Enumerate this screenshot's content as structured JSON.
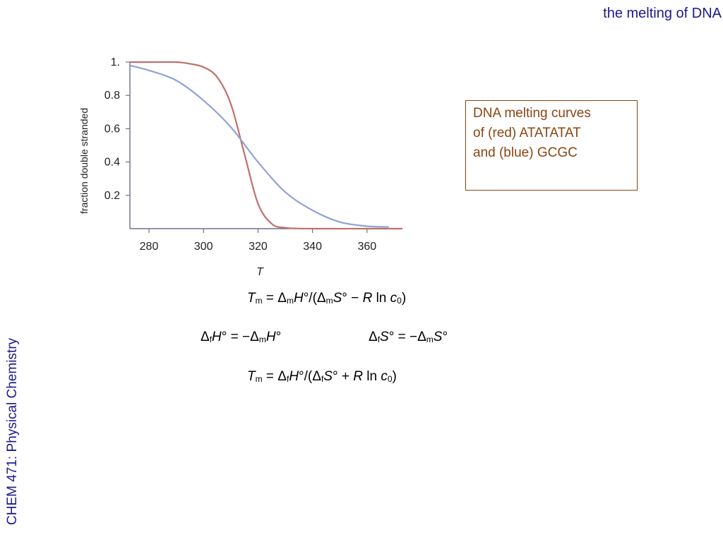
{
  "header": {
    "title": "the melting of DNA"
  },
  "sidebar": {
    "course_label": "CHEM 471: Physical Chemistry"
  },
  "note": {
    "lines": [
      "DNA melting curves",
      "of (red) ATATATAT",
      "and (blue) GCGC"
    ]
  },
  "colors": {
    "red_curve": "#c0706a",
    "blue_curve": "#8fa4d4",
    "axis": "#555577",
    "title": "#1a1a8c",
    "note": "#8b4513"
  },
  "chart_data": {
    "type": "line",
    "xlabel": "T",
    "ylabel": "fraction double stranded",
    "xlim": [
      273,
      373
    ],
    "ylim": [
      0,
      1
    ],
    "x_ticks": [
      280,
      300,
      320,
      340,
      360
    ],
    "x_tick_labels": [
      "280",
      "300",
      "320",
      "340",
      "360"
    ],
    "y_ticks": [
      0.2,
      0.4,
      0.6,
      0.8,
      1
    ],
    "y_tick_labels": [
      "0.2",
      "0.4",
      "0.6",
      "0.8",
      "1."
    ],
    "grid": false,
    "series": [
      {
        "color": "red",
        "x": [
          273,
          280,
          290,
          295,
          300,
          305,
          310,
          315,
          320,
          325,
          330,
          340,
          360,
          373
        ],
        "y": [
          1.0,
          1.0,
          1.0,
          0.99,
          0.97,
          0.91,
          0.75,
          0.45,
          0.15,
          0.03,
          0.005,
          0.0,
          0.0,
          0.0
        ]
      },
      {
        "color": "blue",
        "x": [
          273,
          280,
          290,
          300,
          310,
          320,
          330,
          340,
          350,
          360,
          368
        ],
        "y": [
          0.98,
          0.95,
          0.89,
          0.77,
          0.61,
          0.4,
          0.22,
          0.11,
          0.04,
          0.015,
          0.01
        ]
      }
    ]
  },
  "equations": {
    "tm1": {
      "lhs_var": "T",
      "lhs_sub": "m",
      "eq": " = Δ",
      "s1": "m",
      "v1": "H",
      "mid1": "°/(Δ",
      "s2": "m",
      "v2": "S",
      "mid2": "° − ",
      "v3": "R",
      "ln": " ln ",
      "v4": "c",
      "s4": "0",
      "end": ")"
    },
    "dfh": {
      "d": "Δ",
      "s1": "f",
      "v1": "H",
      "mid": "° = −Δ",
      "s2": "m",
      "v2": "H",
      "end": "°"
    },
    "dfs": {
      "d": "Δ",
      "s1": "f",
      "v1": "S",
      "mid": "° = −Δ",
      "s2": "m",
      "v2": "S",
      "end": "°"
    },
    "tm2": {
      "lhs_var": "T",
      "lhs_sub": "m",
      "eq": " = Δ",
      "s1": "f",
      "v1": "H",
      "mid1": "°/(Δ",
      "s2": "f",
      "v2": "S",
      "mid2": "° + ",
      "v3": "R",
      "ln": " ln ",
      "v4": "c",
      "s4": "0",
      "end": ")"
    }
  }
}
